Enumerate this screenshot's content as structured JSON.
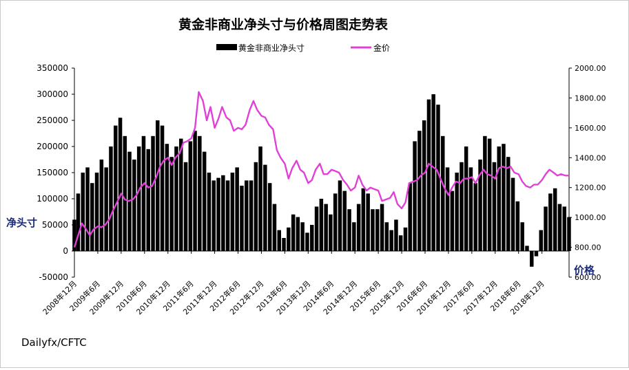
{
  "chart_data": {
    "type": "bar+line",
    "title": "黄金非商业净头寸与价格周图走势表",
    "legend": {
      "placement": "top",
      "entries": [
        "黄金非商业净头寸",
        "金价"
      ]
    },
    "source": "Dailyfx/CFTC",
    "y_left": {
      "label": "净头寸",
      "range": [
        -50000,
        350000
      ],
      "ticks": [
        "350000",
        "300000",
        "250000",
        "200000",
        "150000",
        "100000",
        "50000",
        "0",
        "-50000"
      ]
    },
    "y_right": {
      "label": "价格",
      "range": [
        600,
        2000
      ],
      "ticks": [
        "2000.00",
        "1800.00",
        "1600.00",
        "1400.00",
        "1200.00",
        "1000.00",
        "800.00",
        "600.00"
      ]
    },
    "x_range": [
      2008.92,
      2019.5
    ],
    "x_ticks": [
      "2008年12月",
      "2009年6月",
      "2009年12月",
      "2010年6月",
      "2010年12月",
      "2011年6月",
      "2011年12月",
      "2012年6月",
      "2012年12月",
      "2013年6月",
      "2013年12月",
      "2014年6月",
      "2014年12月",
      "2015年6月",
      "2015年12月",
      "2016年6月",
      "2016年12月",
      "2017年6月",
      "2017年12月",
      "2018年6月",
      "2018年12月"
    ],
    "series": [
      {
        "name": "黄金非商业净头寸",
        "kind": "bar",
        "color": "#000000",
        "points": [
          [
            2008.92,
            60000
          ],
          [
            2009.0,
            110000
          ],
          [
            2009.1,
            150000
          ],
          [
            2009.2,
            160000
          ],
          [
            2009.3,
            130000
          ],
          [
            2009.4,
            150000
          ],
          [
            2009.5,
            175000
          ],
          [
            2009.6,
            160000
          ],
          [
            2009.7,
            200000
          ],
          [
            2009.8,
            240000
          ],
          [
            2009.9,
            255000
          ],
          [
            2010.0,
            220000
          ],
          [
            2010.1,
            190000
          ],
          [
            2010.2,
            175000
          ],
          [
            2010.3,
            200000
          ],
          [
            2010.4,
            220000
          ],
          [
            2010.5,
            195000
          ],
          [
            2010.6,
            220000
          ],
          [
            2010.7,
            250000
          ],
          [
            2010.8,
            240000
          ],
          [
            2010.9,
            205000
          ],
          [
            2011.0,
            180000
          ],
          [
            2011.1,
            200000
          ],
          [
            2011.2,
            215000
          ],
          [
            2011.3,
            170000
          ],
          [
            2011.4,
            210000
          ],
          [
            2011.5,
            230000
          ],
          [
            2011.6,
            220000
          ],
          [
            2011.7,
            190000
          ],
          [
            2011.8,
            150000
          ],
          [
            2011.9,
            135000
          ],
          [
            2012.0,
            140000
          ],
          [
            2012.1,
            145000
          ],
          [
            2012.2,
            135000
          ],
          [
            2012.3,
            150000
          ],
          [
            2012.4,
            160000
          ],
          [
            2012.5,
            125000
          ],
          [
            2012.6,
            135000
          ],
          [
            2012.7,
            135000
          ],
          [
            2012.8,
            170000
          ],
          [
            2012.9,
            200000
          ],
          [
            2013.0,
            165000
          ],
          [
            2013.1,
            130000
          ],
          [
            2013.2,
            90000
          ],
          [
            2013.3,
            40000
          ],
          [
            2013.4,
            25000
          ],
          [
            2013.5,
            45000
          ],
          [
            2013.6,
            70000
          ],
          [
            2013.7,
            65000
          ],
          [
            2013.8,
            55000
          ],
          [
            2013.9,
            35000
          ],
          [
            2014.0,
            50000
          ],
          [
            2014.1,
            85000
          ],
          [
            2014.2,
            100000
          ],
          [
            2014.3,
            90000
          ],
          [
            2014.4,
            70000
          ],
          [
            2014.5,
            110000
          ],
          [
            2014.6,
            135000
          ],
          [
            2014.7,
            115000
          ],
          [
            2014.8,
            80000
          ],
          [
            2014.9,
            55000
          ],
          [
            2015.0,
            90000
          ],
          [
            2015.1,
            120000
          ],
          [
            2015.2,
            110000
          ],
          [
            2015.3,
            80000
          ],
          [
            2015.4,
            80000
          ],
          [
            2015.5,
            90000
          ],
          [
            2015.6,
            55000
          ],
          [
            2015.7,
            40000
          ],
          [
            2015.8,
            60000
          ],
          [
            2015.9,
            30000
          ],
          [
            2016.0,
            45000
          ],
          [
            2016.1,
            130000
          ],
          [
            2016.2,
            210000
          ],
          [
            2016.3,
            230000
          ],
          [
            2016.4,
            250000
          ],
          [
            2016.5,
            290000
          ],
          [
            2016.6,
            300000
          ],
          [
            2016.7,
            280000
          ],
          [
            2016.8,
            220000
          ],
          [
            2016.9,
            160000
          ],
          [
            2017.0,
            115000
          ],
          [
            2017.1,
            150000
          ],
          [
            2017.2,
            170000
          ],
          [
            2017.3,
            200000
          ],
          [
            2017.4,
            160000
          ],
          [
            2017.5,
            130000
          ],
          [
            2017.6,
            175000
          ],
          [
            2017.7,
            220000
          ],
          [
            2017.8,
            215000
          ],
          [
            2017.9,
            170000
          ],
          [
            2018.0,
            200000
          ],
          [
            2018.1,
            205000
          ],
          [
            2018.2,
            180000
          ],
          [
            2018.3,
            140000
          ],
          [
            2018.4,
            95000
          ],
          [
            2018.5,
            55000
          ],
          [
            2018.6,
            10000
          ],
          [
            2018.7,
            -30000
          ],
          [
            2018.8,
            -10000
          ],
          [
            2018.9,
            40000
          ],
          [
            2019.0,
            85000
          ],
          [
            2019.1,
            110000
          ],
          [
            2019.2,
            120000
          ],
          [
            2019.3,
            90000
          ],
          [
            2019.4,
            85000
          ],
          [
            2019.5,
            65000
          ]
        ]
      },
      {
        "name": "金价",
        "kind": "line",
        "color": "#e040d8",
        "points": [
          [
            2008.92,
            800
          ],
          [
            2009.0,
            880
          ],
          [
            2009.08,
            960
          ],
          [
            2009.17,
            920
          ],
          [
            2009.25,
            880
          ],
          [
            2009.33,
            920
          ],
          [
            2009.42,
            940
          ],
          [
            2009.5,
            935
          ],
          [
            2009.58,
            950
          ],
          [
            2009.67,
            990
          ],
          [
            2009.75,
            1050
          ],
          [
            2009.83,
            1100
          ],
          [
            2009.92,
            1160
          ],
          [
            2010.0,
            1120
          ],
          [
            2010.08,
            1110
          ],
          [
            2010.17,
            1120
          ],
          [
            2010.25,
            1150
          ],
          [
            2010.33,
            1200
          ],
          [
            2010.42,
            1230
          ],
          [
            2010.5,
            1200
          ],
          [
            2010.58,
            1210
          ],
          [
            2010.67,
            1270
          ],
          [
            2010.75,
            1340
          ],
          [
            2010.83,
            1380
          ],
          [
            2010.92,
            1400
          ],
          [
            2011.0,
            1350
          ],
          [
            2011.08,
            1400
          ],
          [
            2011.17,
            1430
          ],
          [
            2011.25,
            1500
          ],
          [
            2011.33,
            1510
          ],
          [
            2011.42,
            1530
          ],
          [
            2011.5,
            1600
          ],
          [
            2011.58,
            1840
          ],
          [
            2011.67,
            1780
          ],
          [
            2011.75,
            1650
          ],
          [
            2011.83,
            1740
          ],
          [
            2011.92,
            1600
          ],
          [
            2012.0,
            1660
          ],
          [
            2012.08,
            1740
          ],
          [
            2012.17,
            1670
          ],
          [
            2012.25,
            1650
          ],
          [
            2012.33,
            1580
          ],
          [
            2012.42,
            1600
          ],
          [
            2012.5,
            1590
          ],
          [
            2012.58,
            1620
          ],
          [
            2012.67,
            1720
          ],
          [
            2012.75,
            1780
          ],
          [
            2012.83,
            1720
          ],
          [
            2012.92,
            1680
          ],
          [
            2013.0,
            1670
          ],
          [
            2013.08,
            1620
          ],
          [
            2013.17,
            1590
          ],
          [
            2013.25,
            1450
          ],
          [
            2013.33,
            1400
          ],
          [
            2013.42,
            1360
          ],
          [
            2013.5,
            1260
          ],
          [
            2013.58,
            1330
          ],
          [
            2013.67,
            1380
          ],
          [
            2013.75,
            1320
          ],
          [
            2013.83,
            1300
          ],
          [
            2013.92,
            1230
          ],
          [
            2014.0,
            1250
          ],
          [
            2014.08,
            1320
          ],
          [
            2014.17,
            1360
          ],
          [
            2014.25,
            1290
          ],
          [
            2014.33,
            1290
          ],
          [
            2014.42,
            1320
          ],
          [
            2014.5,
            1310
          ],
          [
            2014.58,
            1300
          ],
          [
            2014.67,
            1250
          ],
          [
            2014.75,
            1220
          ],
          [
            2014.83,
            1180
          ],
          [
            2014.92,
            1200
          ],
          [
            2015.0,
            1280
          ],
          [
            2015.08,
            1220
          ],
          [
            2015.17,
            1180
          ],
          [
            2015.25,
            1200
          ],
          [
            2015.33,
            1190
          ],
          [
            2015.42,
            1180
          ],
          [
            2015.5,
            1110
          ],
          [
            2015.58,
            1120
          ],
          [
            2015.67,
            1130
          ],
          [
            2015.75,
            1170
          ],
          [
            2015.83,
            1090
          ],
          [
            2015.92,
            1060
          ],
          [
            2016.0,
            1100
          ],
          [
            2016.08,
            1230
          ],
          [
            2016.17,
            1240
          ],
          [
            2016.25,
            1250
          ],
          [
            2016.33,
            1280
          ],
          [
            2016.42,
            1300
          ],
          [
            2016.5,
            1360
          ],
          [
            2016.58,
            1340
          ],
          [
            2016.67,
            1320
          ],
          [
            2016.75,
            1260
          ],
          [
            2016.83,
            1200
          ],
          [
            2016.92,
            1150
          ],
          [
            2017.0,
            1200
          ],
          [
            2017.08,
            1240
          ],
          [
            2017.17,
            1230
          ],
          [
            2017.25,
            1260
          ],
          [
            2017.33,
            1260
          ],
          [
            2017.42,
            1270
          ],
          [
            2017.5,
            1230
          ],
          [
            2017.58,
            1280
          ],
          [
            2017.67,
            1320
          ],
          [
            2017.75,
            1290
          ],
          [
            2017.83,
            1280
          ],
          [
            2017.92,
            1260
          ],
          [
            2018.0,
            1330
          ],
          [
            2018.08,
            1340
          ],
          [
            2018.17,
            1330
          ],
          [
            2018.25,
            1340
          ],
          [
            2018.33,
            1300
          ],
          [
            2018.42,
            1290
          ],
          [
            2018.5,
            1240
          ],
          [
            2018.58,
            1210
          ],
          [
            2018.67,
            1200
          ],
          [
            2018.75,
            1220
          ],
          [
            2018.83,
            1220
          ],
          [
            2018.92,
            1250
          ],
          [
            2019.0,
            1290
          ],
          [
            2019.08,
            1320
          ],
          [
            2019.17,
            1300
          ],
          [
            2019.25,
            1280
          ],
          [
            2019.33,
            1290
          ],
          [
            2019.42,
            1280
          ],
          [
            2019.5,
            1280
          ]
        ]
      }
    ]
  }
}
